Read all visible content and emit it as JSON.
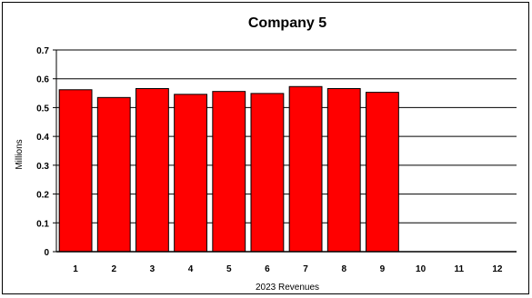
{
  "chart_data": {
    "type": "bar",
    "title": "Company 5",
    "xlabel": "2023 Revenues",
    "ylabel": "Millions",
    "categories": [
      "1",
      "2",
      "3",
      "4",
      "5",
      "6",
      "7",
      "8",
      "9",
      "10",
      "11",
      "12"
    ],
    "values": [
      0.562,
      0.535,
      0.566,
      0.546,
      0.556,
      0.549,
      0.573,
      0.566,
      0.553,
      0,
      0,
      0
    ],
    "ylim": [
      0,
      0.7
    ],
    "yticks": [
      "0",
      "0.1",
      "0.2",
      "0.3",
      "0.4",
      "0.5",
      "0.6",
      "0.7"
    ],
    "grid": true,
    "legend": "none",
    "bar_color": "#ff0000",
    "bar_edge_color": "#000000"
  }
}
